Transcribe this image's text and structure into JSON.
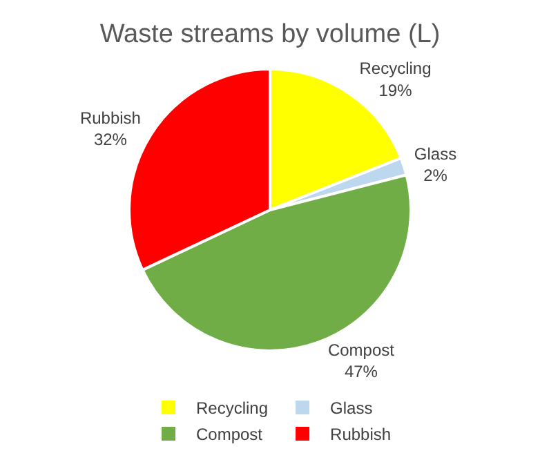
{
  "chart_data": {
    "type": "pie",
    "title": "Waste streams by volume (L)",
    "categories": [
      "Recycling",
      "Glass",
      "Compost",
      "Rubbish"
    ],
    "values": [
      19,
      2,
      47,
      32
    ],
    "value_labels": [
      "19%",
      "2%",
      "47%",
      "32%"
    ],
    "colors": [
      "#ffff00",
      "#bdd7ee",
      "#70ad47",
      "#ff0000"
    ],
    "legend": "bottom"
  }
}
